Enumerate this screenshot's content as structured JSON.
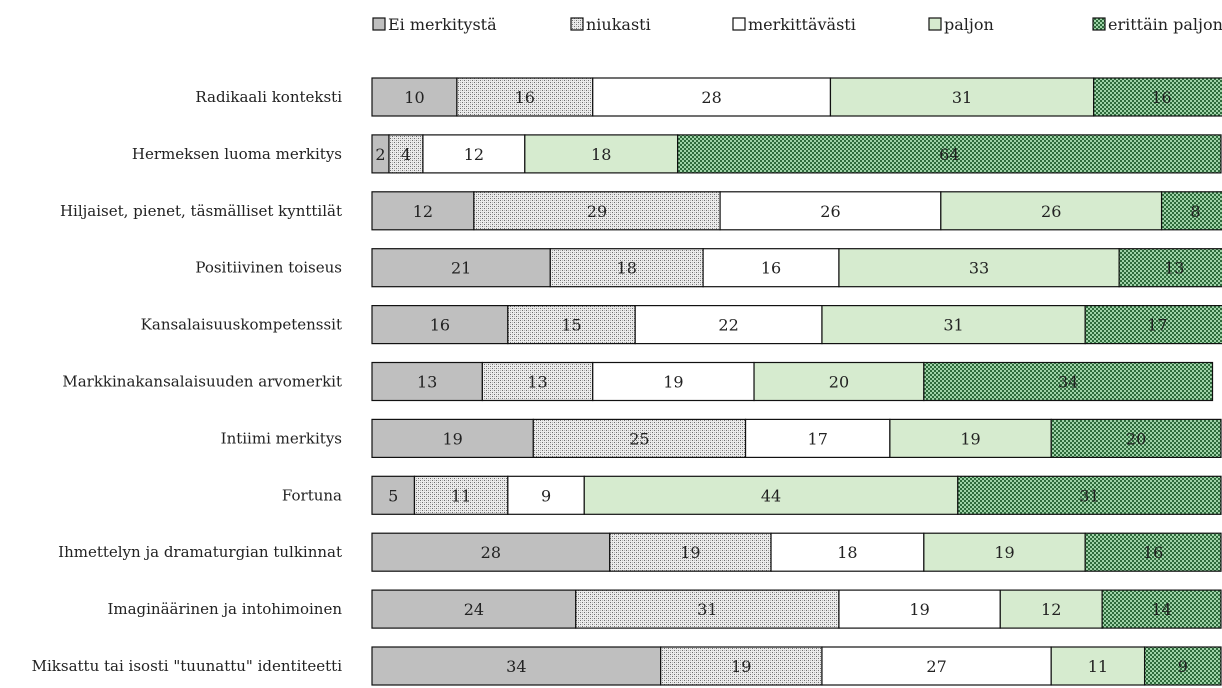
{
  "chart_data": {
    "type": "bar",
    "orientation": "horizontal",
    "stacked": true,
    "title": "",
    "xlabel": "",
    "ylabel": "",
    "xlim": [
      0,
      100
    ],
    "grid": false,
    "legend_position": "top",
    "categories": [
      "Radikaali konteksti",
      "Hermeksen luoma merkitys",
      "Hiljaiset, pienet, täsmälliset kynttilät",
      "Positiivinen toiseus",
      "Kansalaisuuskompetenssit",
      "Markkinakansalaisuuden arvomerkit",
      "Intiimi merkitys",
      "Fortuna",
      "Ihmettelyn ja dramaturgian tulkinnat",
      "Imaginäärinen ja intohimoinen",
      "Miksattu tai isosti \"tuunattu\" identiteetti"
    ],
    "series": [
      {
        "name": "Ei merkitystä",
        "fill": "#bfbfbf",
        "pattern": "solid",
        "values": [
          10,
          2,
          12,
          21,
          16,
          13,
          19,
          5,
          28,
          24,
          34
        ]
      },
      {
        "name": "niukasti",
        "fill": "#d9d9d9",
        "pattern": "dots",
        "values": [
          16,
          4,
          29,
          18,
          15,
          13,
          25,
          11,
          19,
          31,
          19
        ]
      },
      {
        "name": "merkittävästi",
        "fill": "#ffffff",
        "pattern": "solid",
        "values": [
          28,
          12,
          26,
          16,
          22,
          19,
          17,
          9,
          18,
          19,
          27
        ]
      },
      {
        "name": "paljon",
        "fill": "#d6ebcf",
        "pattern": "solid",
        "values": [
          31,
          18,
          26,
          33,
          31,
          20,
          19,
          44,
          19,
          12,
          11
        ]
      },
      {
        "name": "erittäin paljon",
        "fill": "#b6dcb8",
        "pattern": "checker",
        "values": [
          16,
          64,
          8,
          13,
          17,
          34,
          20,
          31,
          16,
          14,
          9
        ]
      }
    ]
  }
}
